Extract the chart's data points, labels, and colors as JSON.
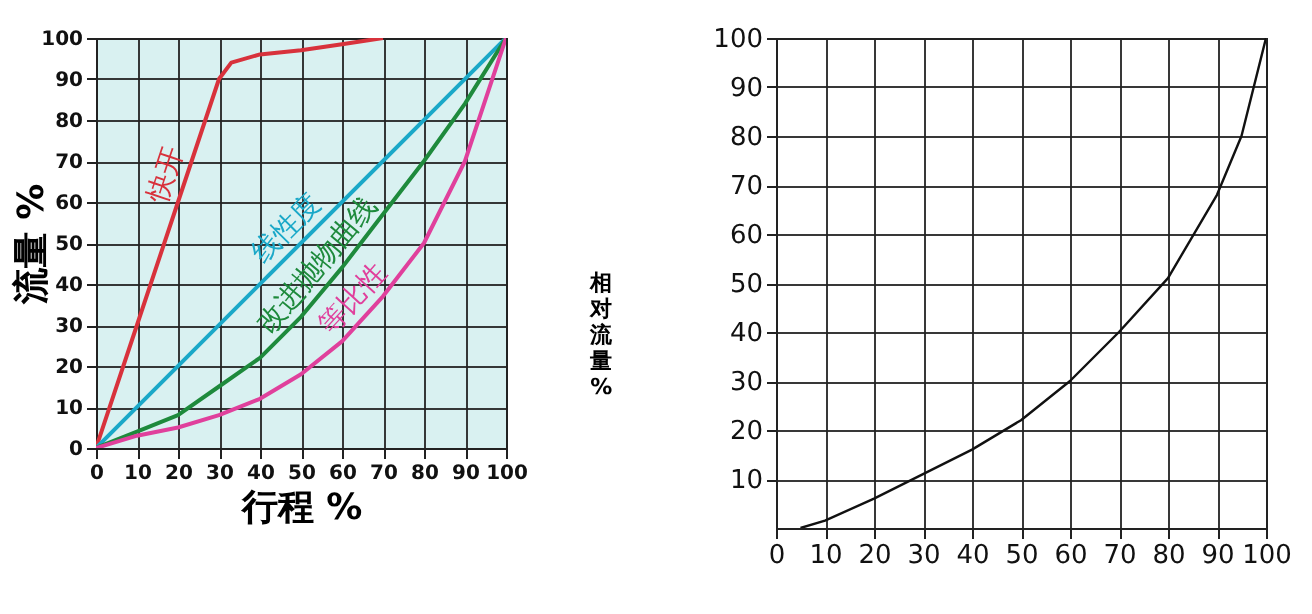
{
  "chart_data": [
    {
      "type": "line",
      "xlabel": "行程 %",
      "ylabel": "流量 %",
      "xlim": [
        0,
        100
      ],
      "ylim": [
        0,
        100
      ],
      "xticks": [
        0,
        10,
        20,
        30,
        40,
        50,
        60,
        70,
        80,
        90,
        100
      ],
      "yticks": [
        0,
        10,
        20,
        30,
        40,
        50,
        60,
        70,
        80,
        90,
        100
      ],
      "grid": true,
      "legend": false,
      "series": [
        {
          "name": "快开",
          "color": "#d8323c",
          "x": [
            0,
            10,
            20,
            30,
            33,
            40,
            50,
            60,
            70
          ],
          "values": [
            0,
            30,
            60,
            90,
            94,
            96,
            97,
            98.5,
            100
          ]
        },
        {
          "name": "线性度",
          "color": "#1aa8c8",
          "x": [
            0,
            100
          ],
          "values": [
            0,
            100
          ]
        },
        {
          "name": "改进抛物曲线",
          "color": "#1e8a3c",
          "x": [
            0,
            10,
            20,
            30,
            40,
            50,
            60,
            70,
            80,
            90,
            100
          ],
          "values": [
            0,
            4,
            8,
            15,
            22,
            32,
            44,
            57,
            70,
            84,
            100
          ]
        },
        {
          "name": "等比性",
          "color": "#e0409c",
          "x": [
            0,
            10,
            20,
            30,
            40,
            50,
            60,
            70,
            80,
            90,
            100
          ],
          "values": [
            0,
            3,
            5,
            8,
            12,
            18,
            26,
            37,
            50,
            70,
            100
          ]
        }
      ]
    },
    {
      "type": "line",
      "ylabel": "相对流量%",
      "xlim": [
        0,
        100
      ],
      "ylim": [
        0,
        100
      ],
      "xticks": [
        0,
        10,
        20,
        30,
        40,
        50,
        60,
        70,
        80,
        90,
        100
      ],
      "yticks": [
        10,
        20,
        30,
        40,
        50,
        60,
        70,
        80,
        90,
        100
      ],
      "grid": true,
      "legend": false,
      "series": [
        {
          "color": "#111111",
          "x": [
            5,
            10,
            20,
            30,
            40,
            50,
            60,
            70,
            80,
            90,
            95,
            100
          ],
          "values": [
            0,
            1.5,
            6,
            11,
            16,
            22,
            30,
            40,
            51,
            68,
            80,
            100
          ]
        }
      ]
    }
  ]
}
